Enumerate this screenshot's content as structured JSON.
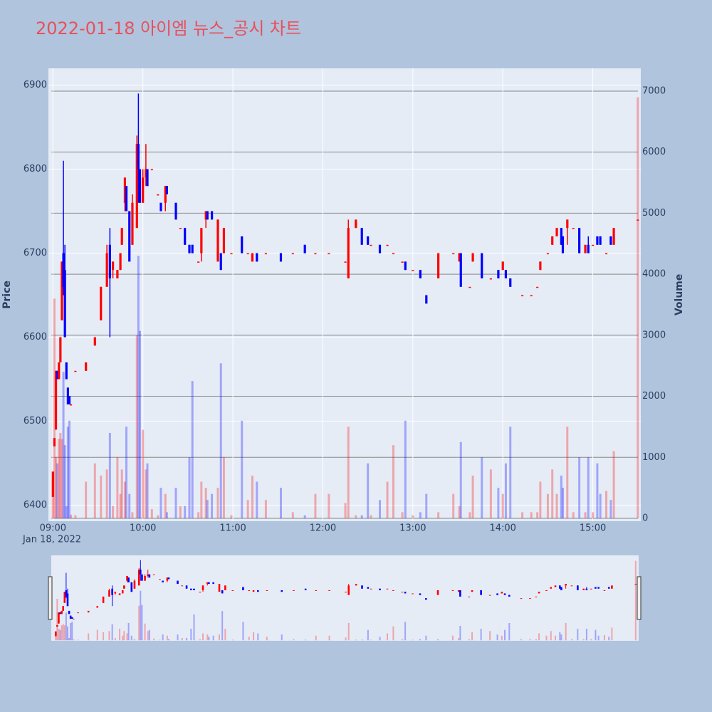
{
  "chart_data": {
    "type": "candlestick",
    "title": "2022-01-18 아이엠 뉴스_공시 차트",
    "ylabel": "Price",
    "y2label": "Volume",
    "x_date_label": "Jan 18, 2022",
    "up_color": "#ff0000",
    "down_color": "#0000ff",
    "xlim": [
      "2022-01-18 08:57",
      "2022-01-18 15:32"
    ],
    "xticks": [
      {
        "value": "2022-01-18 09:00",
        "label": "09:00"
      },
      {
        "value": "2022-01-18 10:00",
        "label": "10:00"
      },
      {
        "value": "2022-01-18 11:00",
        "label": "11:00"
      },
      {
        "value": "2022-01-18 12:00",
        "label": "12:00"
      },
      {
        "value": "2022-01-18 13:00",
        "label": "13:00"
      },
      {
        "value": "2022-01-18 14:00",
        "label": "14:00"
      },
      {
        "value": "2022-01-18 15:00",
        "label": "15:00"
      }
    ],
    "ylim": [
      6381,
      6920
    ],
    "yticks": [
      6400,
      6500,
      6600,
      6700,
      6800,
      6900
    ],
    "y2lim": [
      -47,
      7373
    ],
    "y2ticks": [
      0,
      1000,
      2000,
      3000,
      4000,
      5000,
      6000,
      7000
    ],
    "x": [
      "2022-01-18 09:00",
      "2022-01-18 09:01",
      "2022-01-18 09:02",
      "2022-01-18 09:03",
      "2022-01-18 09:04",
      "2022-01-18 09:05",
      "2022-01-18 09:06",
      "2022-01-18 09:07",
      "2022-01-18 09:08",
      "2022-01-18 09:09",
      "2022-01-18 09:10",
      "2022-01-18 09:11",
      "2022-01-18 09:12",
      "2022-01-18 09:15",
      "2022-01-18 09:22",
      "2022-01-18 09:28",
      "2022-01-18 09:32",
      "2022-01-18 09:36",
      "2022-01-18 09:38",
      "2022-01-18 09:40",
      "2022-01-18 09:43",
      "2022-01-18 09:45",
      "2022-01-18 09:46",
      "2022-01-18 09:48",
      "2022-01-18 09:49",
      "2022-01-18 09:51",
      "2022-01-18 09:53",
      "2022-01-18 09:56",
      "2022-01-18 09:57",
      "2022-01-18 09:58",
      "2022-01-18 10:00",
      "2022-01-18 10:02",
      "2022-01-18 10:03",
      "2022-01-18 10:06",
      "2022-01-18 10:10",
      "2022-01-18 10:12",
      "2022-01-18 10:15",
      "2022-01-18 10:16",
      "2022-01-18 10:22",
      "2022-01-18 10:25",
      "2022-01-18 10:28",
      "2022-01-18 10:31",
      "2022-01-18 10:33",
      "2022-01-18 10:37",
      "2022-01-18 10:39",
      "2022-01-18 10:42",
      "2022-01-18 10:43",
      "2022-01-18 10:46",
      "2022-01-18 10:50",
      "2022-01-18 10:52",
      "2022-01-18 10:54",
      "2022-01-18 10:59",
      "2022-01-18 11:06",
      "2022-01-18 11:10",
      "2022-01-18 11:13",
      "2022-01-18 11:16",
      "2022-01-18 11:22",
      "2022-01-18 11:32",
      "2022-01-18 11:40",
      "2022-01-18 11:48",
      "2022-01-18 11:55",
      "2022-01-18 12:04",
      "2022-01-18 12:15",
      "2022-01-18 12:17",
      "2022-01-18 12:22",
      "2022-01-18 12:26",
      "2022-01-18 12:30",
      "2022-01-18 12:32",
      "2022-01-18 12:38",
      "2022-01-18 12:43",
      "2022-01-18 12:47",
      "2022-01-18 12:53",
      "2022-01-18 12:55",
      "2022-01-18 13:00",
      "2022-01-18 13:05",
      "2022-01-18 13:09",
      "2022-01-18 13:17",
      "2022-01-18 13:27",
      "2022-01-18 13:31",
      "2022-01-18 13:32",
      "2022-01-18 13:38",
      "2022-01-18 13:40",
      "2022-01-18 13:46",
      "2022-01-18 13:52",
      "2022-01-18 13:57",
      "2022-01-18 14:00",
      "2022-01-18 14:02",
      "2022-01-18 14:05",
      "2022-01-18 14:13",
      "2022-01-18 14:19",
      "2022-01-18 14:23",
      "2022-01-18 14:25",
      "2022-01-18 14:30",
      "2022-01-18 14:33",
      "2022-01-18 14:36",
      "2022-01-18 14:39",
      "2022-01-18 14:40",
      "2022-01-18 14:43",
      "2022-01-18 14:47",
      "2022-01-18 14:51",
      "2022-01-18 14:55",
      "2022-01-18 14:57",
      "2022-01-18 15:00",
      "2022-01-18 15:03",
      "2022-01-18 15:05",
      "2022-01-18 15:09",
      "2022-01-18 15:12",
      "2022-01-18 15:14",
      "2022-01-18 15:30"
    ],
    "open": [
      6410,
      6470,
      6490,
      6560,
      6550,
      6570,
      6620,
      6700,
      6680,
      6570,
      6540,
      6530,
      6520,
      6560,
      6560,
      6590,
      6620,
      6660,
      6710,
      6680,
      6670,
      6680,
      6710,
      6760,
      6780,
      6750,
      6710,
      6730,
      6830,
      6800,
      6760,
      6790,
      6800,
      6800,
      6770,
      6760,
      6760,
      6780,
      6760,
      6730,
      6730,
      6710,
      6710,
      6690,
      6700,
      6740,
      6750,
      6750,
      6690,
      6700,
      6700,
      6700,
      6720,
      6700,
      6690,
      6700,
      6700,
      6700,
      6700,
      6710,
      6700,
      6700,
      6690,
      6670,
      6730,
      6730,
      6720,
      6710,
      6710,
      6710,
      6700,
      6690,
      6690,
      6680,
      6680,
      6650,
      6670,
      6700,
      6690,
      6700,
      6660,
      6690,
      6700,
      6670,
      6680,
      6680,
      6680,
      6670,
      6650,
      6650,
      6660,
      6680,
      6700,
      6710,
      6720,
      6730,
      6720,
      6730,
      6730,
      6730,
      6700,
      6710,
      6710,
      6720,
      6720,
      6700,
      6720,
      6710,
      6740
    ],
    "high": [
      6440,
      6480,
      6560,
      6560,
      6570,
      6600,
      6690,
      6810,
      6710,
      6570,
      6540,
      6530,
      6520,
      6560,
      6570,
      6600,
      6660,
      6710,
      6730,
      6690,
      6680,
      6700,
      6730,
      6790,
      6780,
      6750,
      6770,
      6840,
      6890,
      6800,
      6800,
      6830,
      6800,
      6800,
      6770,
      6760,
      6780,
      6780,
      6760,
      6730,
      6730,
      6710,
      6710,
      6690,
      6730,
      6750,
      6750,
      6750,
      6740,
      6700,
      6730,
      6700,
      6720,
      6700,
      6700,
      6700,
      6700,
      6700,
      6700,
      6710,
      6700,
      6700,
      6690,
      6740,
      6740,
      6730,
      6720,
      6710,
      6710,
      6710,
      6700,
      6690,
      6690,
      6680,
      6680,
      6650,
      6700,
      6700,
      6700,
      6700,
      6660,
      6700,
      6700,
      6670,
      6680,
      6690,
      6680,
      6670,
      6650,
      6650,
      6660,
      6690,
      6700,
      6720,
      6730,
      6730,
      6720,
      6740,
      6730,
      6730,
      6710,
      6720,
      6710,
      6720,
      6720,
      6700,
      6720,
      6730,
      6740
    ],
    "low": [
      6410,
      6470,
      6490,
      6550,
      6550,
      6570,
      6620,
      6650,
      6600,
      6550,
      6520,
      6520,
      6520,
      6560,
      6560,
      6590,
      6620,
      6660,
      6600,
      6670,
      6670,
      6680,
      6710,
      6750,
      6750,
      6690,
      6710,
      6730,
      6760,
      6760,
      6760,
      6780,
      6780,
      6800,
      6770,
      6750,
      6750,
      6770,
      6740,
      6730,
      6710,
      6700,
      6700,
      6690,
      6690,
      6730,
      6740,
      6740,
      6690,
      6680,
      6700,
      6700,
      6700,
      6700,
      6690,
      6690,
      6700,
      6690,
      6700,
      6700,
      6700,
      6700,
      6690,
      6670,
      6730,
      6710,
      6710,
      6710,
      6700,
      6710,
      6700,
      6690,
      6680,
      6680,
      6670,
      6640,
      6670,
      6700,
      6690,
      6660,
      6660,
      6690,
      6670,
      6670,
      6670,
      6680,
      6670,
      6660,
      6650,
      6650,
      6660,
      6680,
      6700,
      6710,
      6720,
      6710,
      6700,
      6710,
      6730,
      6700,
      6700,
      6700,
      6710,
      6710,
      6710,
      6700,
      6710,
      6710,
      6740
    ],
    "close": [
      6440,
      6480,
      6560,
      6550,
      6570,
      6600,
      6690,
      6660,
      6600,
      6550,
      6520,
      6520,
      6520,
      6560,
      6570,
      6600,
      6660,
      6700,
      6670,
      6690,
      6680,
      6700,
      6730,
      6790,
      6750,
      6690,
      6760,
      6830,
      6800,
      6760,
      6790,
      6800,
      6780,
      6800,
      6770,
      6750,
      6780,
      6770,
      6740,
      6730,
      6710,
      6700,
      6700,
      6690,
      6730,
      6750,
      6740,
      6740,
      6740,
      6680,
      6730,
      6700,
      6700,
      6700,
      6700,
      6690,
      6700,
      6690,
      6700,
      6700,
      6700,
      6700,
      6690,
      6730,
      6740,
      6710,
      6710,
      6710,
      6700,
      6710,
      6700,
      6690,
      6680,
      6680,
      6670,
      6640,
      6700,
      6700,
      6700,
      6660,
      6660,
      6700,
      6670,
      6670,
      6670,
      6690,
      6670,
      6660,
      6650,
      6650,
      6660,
      6690,
      6700,
      6720,
      6730,
      6710,
      6700,
      6740,
      6730,
      6700,
      6710,
      6700,
      6710,
      6710,
      6710,
      6700,
      6710,
      6730,
      6740
    ],
    "volume": [
      600,
      3600,
      1000,
      900,
      1300,
      1400,
      1300,
      2400,
      1200,
      200,
      1500,
      1600,
      60,
      50,
      600,
      900,
      700,
      800,
      1400,
      200,
      1000,
      400,
      800,
      600,
      1500,
      400,
      100,
      3000,
      4300,
      3070,
      1450,
      800,
      900,
      150,
      50,
      500,
      400,
      100,
      500,
      200,
      200,
      1000,
      2250,
      100,
      600,
      500,
      300,
      400,
      500,
      2540,
      1000,
      50,
      1600,
      300,
      700,
      600,
      300,
      500,
      100,
      50,
      400,
      400,
      250,
      1500,
      50,
      50,
      900,
      50,
      300,
      600,
      1200,
      100,
      1600,
      50,
      100,
      400,
      100,
      400,
      200,
      1250,
      100,
      700,
      1000,
      800,
      500,
      400,
      900,
      1500,
      100,
      100,
      100,
      600,
      400,
      800,
      400,
      700,
      500,
      1500,
      100,
      1000,
      100,
      1000,
      100,
      900,
      400,
      450,
      300,
      1100,
      6900
    ]
  }
}
